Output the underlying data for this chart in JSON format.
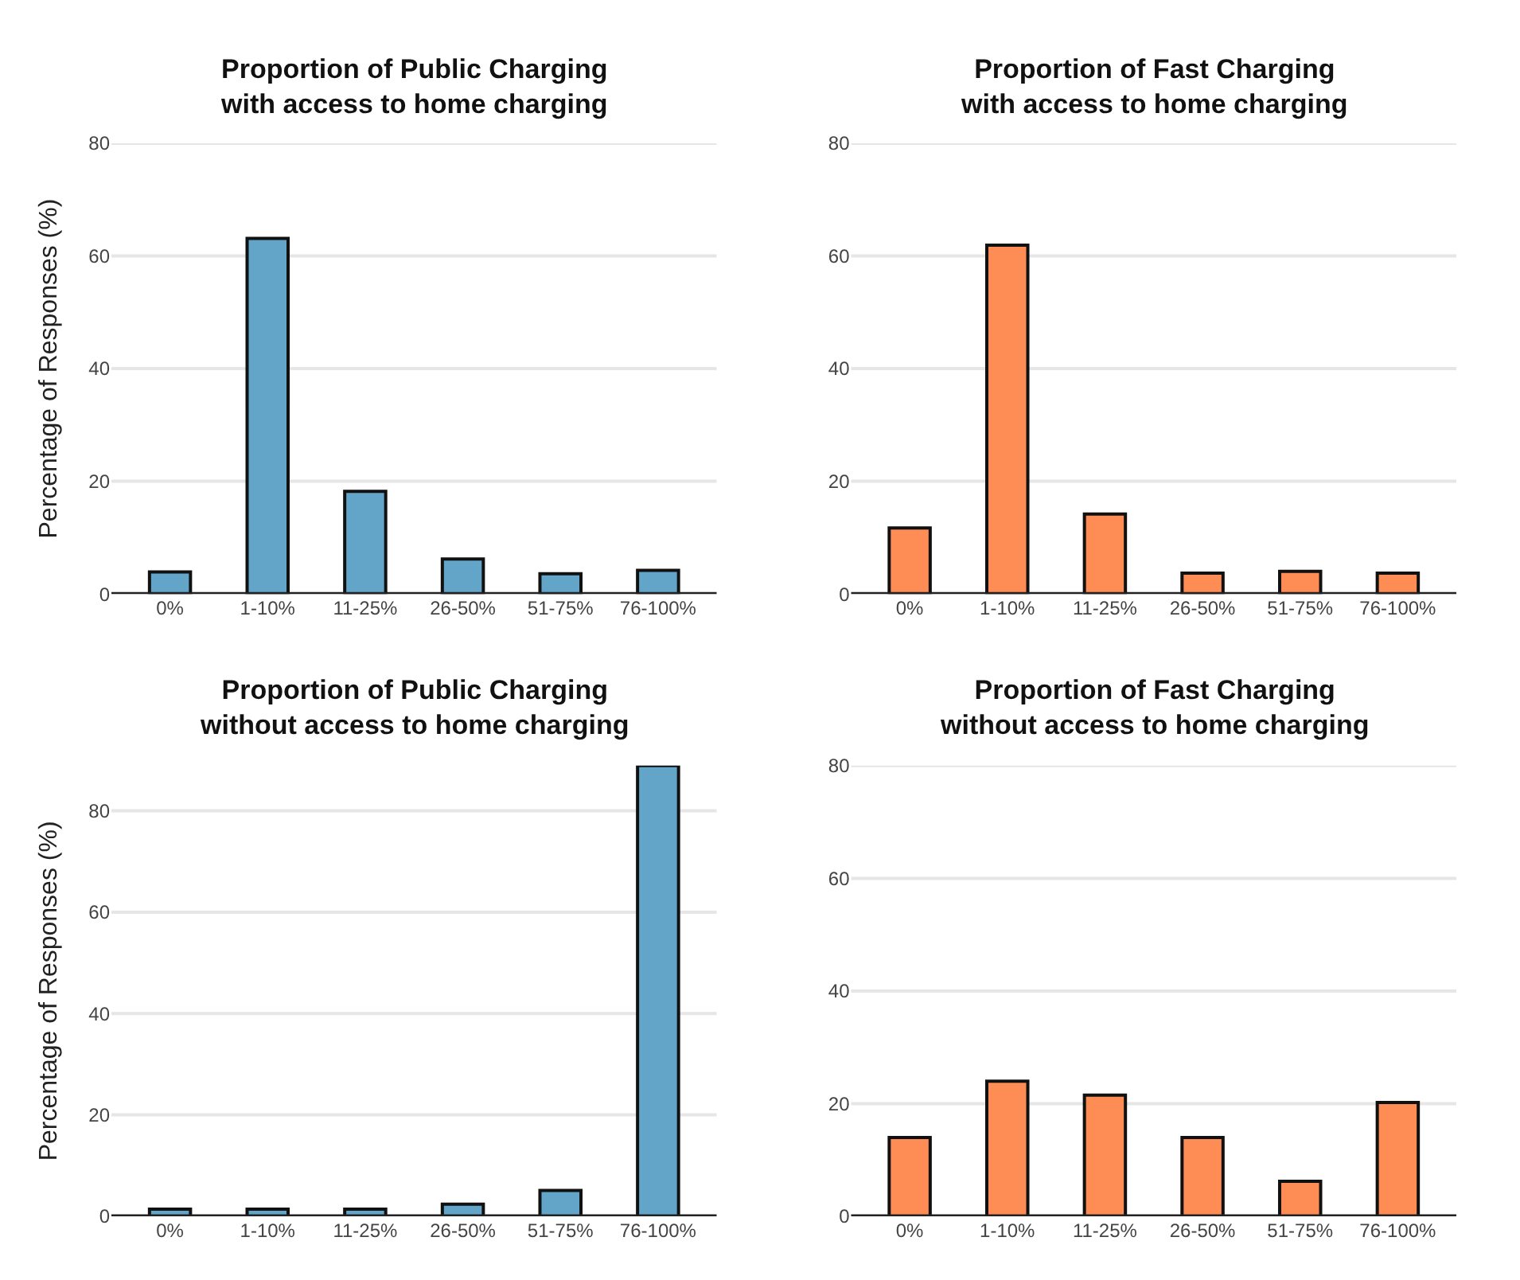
{
  "chart_data": [
    {
      "type": "bar",
      "title": "Proportion of Public Charging\nwith access to home charging",
      "ylabel": "Percentage of Responses (%)",
      "categories": [
        "0%",
        "1-10%",
        "11-25%",
        "26-50%",
        "51-75%",
        "76-100%"
      ],
      "values": [
        3.9,
        63.1,
        18.2,
        6.2,
        3.6,
        4.2
      ],
      "color": "#62a5c8",
      "ylim": [
        0,
        80
      ],
      "yticks": [
        0,
        20,
        40,
        60,
        80
      ],
      "grid": "y"
    },
    {
      "type": "bar",
      "title": "Proportion of Fast Charging\nwith access to home charging",
      "categories": [
        "0%",
        "1-10%",
        "11-25%",
        "26-50%",
        "51-75%",
        "76-100%"
      ],
      "values": [
        11.7,
        61.9,
        14.2,
        3.7,
        4.0,
        3.7
      ],
      "color": "#fd8c55",
      "ylim": [
        0,
        80
      ],
      "yticks": [
        0,
        20,
        40,
        60,
        80
      ],
      "grid": "y"
    },
    {
      "type": "bar",
      "title": "Proportion of Public Charging\nwithout access to home charging",
      "ylabel": "Percentage of Responses (%)",
      "categories": [
        "0%",
        "1-10%",
        "11-25%",
        "26-50%",
        "51-75%",
        "76-100%"
      ],
      "values": [
        1.4,
        1.4,
        1.4,
        2.4,
        5.1,
        88.9
      ],
      "color": "#62a5c8",
      "ylim": [
        0,
        88.9
      ],
      "yticks": [
        0,
        20,
        40,
        60,
        80
      ],
      "grid": "y"
    },
    {
      "type": "bar",
      "title": "Proportion of Fast Charging\nwithout access to home charging",
      "categories": [
        "0%",
        "1-10%",
        "11-25%",
        "26-50%",
        "51-75%",
        "76-100%"
      ],
      "values": [
        14.0,
        24.0,
        21.5,
        14.0,
        6.2,
        20.2
      ],
      "color": "#fd8c55",
      "ylim": [
        0,
        80
      ],
      "yticks": [
        0,
        20,
        40,
        60,
        80
      ],
      "grid": "y"
    }
  ]
}
